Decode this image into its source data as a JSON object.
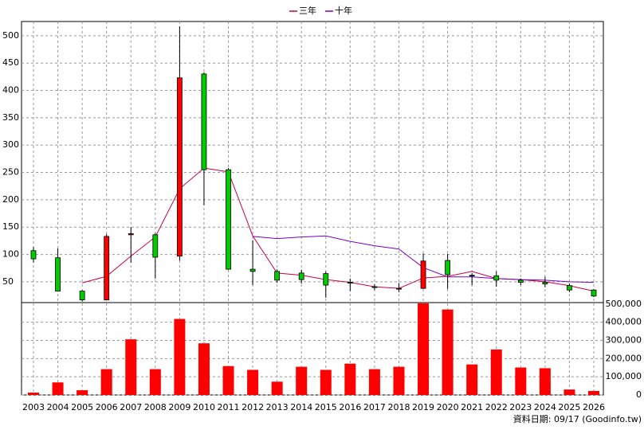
{
  "chart_data": {
    "type": "candlestick",
    "categories": [
      "2003",
      "2004",
      "2005",
      "2006",
      "2007",
      "2008",
      "2009",
      "2010",
      "2011",
      "2012",
      "2013",
      "2014",
      "2015",
      "2016",
      "2017",
      "2018",
      "2019",
      "2020",
      "2021",
      "2022",
      "2023",
      "2024",
      "2025",
      "2026"
    ],
    "open": [
      107,
      94,
      33,
      17,
      136,
      136,
      97,
      430,
      255,
      73,
      69,
      66,
      65,
      49,
      41,
      38,
      38,
      89,
      62,
      61,
      53,
      49,
      43,
      35
    ],
    "high": [
      114,
      111,
      35,
      137,
      150,
      139,
      517,
      433,
      258,
      126,
      73,
      72,
      69,
      56,
      46,
      48,
      102,
      101,
      66,
      69,
      56,
      59,
      47,
      37
    ],
    "low": [
      85,
      32,
      14,
      17,
      85,
      56,
      89,
      190,
      72,
      44,
      48,
      47,
      21,
      33,
      35,
      31,
      37,
      37,
      44,
      41,
      44,
      40,
      31,
      22
    ],
    "close": [
      92,
      33,
      17,
      133,
      138,
      95,
      423,
      255,
      73,
      69,
      53,
      54,
      44,
      48,
      40,
      38,
      88,
      63,
      61,
      53,
      49,
      46,
      35,
      24
    ],
    "up_color": "#ff0000",
    "down_color": "#00cc00",
    "series": [
      {
        "name": "三年",
        "color": "#cc0044",
        "values": [
          null,
          null,
          48,
          60,
          97,
          132,
          220,
          258,
          251,
          134,
          66,
          62,
          54,
          49,
          41,
          38,
          57,
          60,
          69,
          56,
          54,
          50,
          43,
          33
        ]
      },
      {
        "name": "十年",
        "color": "#7700cc",
        "values": [
          null,
          null,
          null,
          null,
          null,
          null,
          null,
          null,
          null,
          133,
          129,
          132,
          134,
          124,
          116,
          110,
          76,
          59,
          59,
          56,
          54,
          53,
          50,
          49
        ]
      }
    ],
    "ylim": [
      12,
      526
    ],
    "yticks": [
      50,
      100,
      150,
      200,
      250,
      300,
      350,
      400,
      450,
      500
    ],
    "grid": true,
    "volume": {
      "type": "bar",
      "color": "#ff0000",
      "values": [
        13000,
        69000,
        26000,
        142000,
        306000,
        142000,
        418000,
        284000,
        159000,
        138000,
        73000,
        155000,
        138000,
        172000,
        142000,
        155000,
        504000,
        470000,
        168000,
        250000,
        151000,
        147000,
        30000,
        22000
      ],
      "ylim": [
        0,
        508000
      ],
      "yticks": [
        0,
        {
          "value": 100000,
          "label": "100,000"
        },
        {
          "value": 200000,
          "label": "200,000"
        },
        {
          "value": 300000,
          "label": "300,000"
        },
        {
          "value": 400000,
          "label": "400,000"
        },
        {
          "value": 500000,
          "label": "500,000"
        }
      ]
    },
    "footnote": "資料日期: 09/17  (Goodinfo.tw)"
  }
}
